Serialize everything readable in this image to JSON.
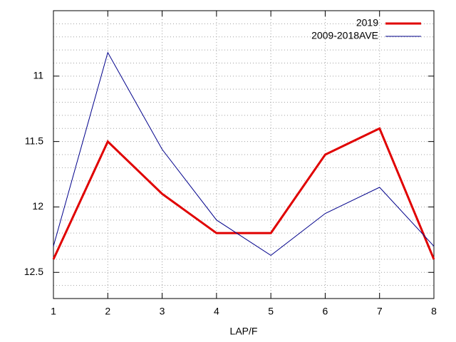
{
  "chart_data": {
    "type": "line",
    "xlabel": "LAP/F",
    "x": [
      1,
      2,
      3,
      4,
      5,
      6,
      7,
      8
    ],
    "series": [
      {
        "name": "2019",
        "color": "#e00000",
        "width": 3,
        "values": [
          12.4,
          11.5,
          11.9,
          12.2,
          12.2,
          11.6,
          11.4,
          12.4
        ]
      },
      {
        "name": "2009-2018AVE",
        "color": "#00008b",
        "width": 1,
        "values": [
          12.3,
          10.82,
          11.56,
          12.1,
          12.37,
          12.05,
          11.85,
          12.3
        ]
      }
    ],
    "xlim": [
      1,
      8
    ],
    "xticks": [
      1,
      2,
      3,
      4,
      5,
      6,
      7,
      8
    ],
    "ylim": [
      12.7,
      10.5
    ],
    "yticks": [
      11,
      11.5,
      12,
      12.5
    ],
    "y_minor_step": 0.1,
    "grid": true,
    "legend": "top-right"
  }
}
